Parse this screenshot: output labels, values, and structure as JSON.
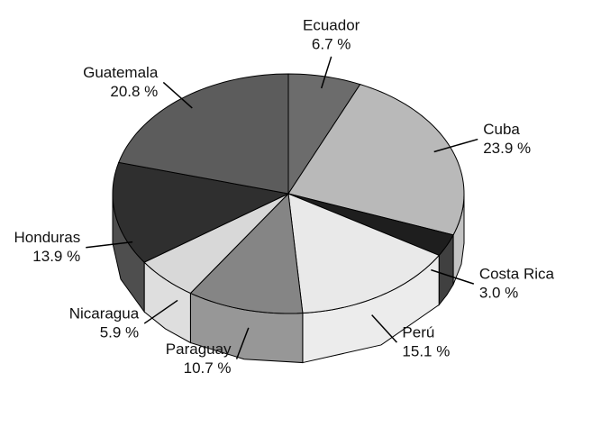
{
  "chart_data": {
    "type": "pie",
    "categories": [
      "Ecuador",
      "Cuba",
      "Costa Rica",
      "Perú",
      "Paraguay",
      "Nicaragua",
      "Honduras",
      "Guatemala"
    ],
    "values": [
      6.7,
      23.9,
      3.0,
      15.1,
      10.7,
      5.9,
      13.9,
      20.8
    ],
    "value_labels": [
      "6.7 %",
      "23.9 %",
      "3.0 %",
      "15.1 %",
      "10.7 %",
      "5.9 %",
      "13.9 %",
      "20.8 %"
    ],
    "colors": [
      "#6c6c6c",
      "#b9b9b9",
      "#1e1e1e",
      "#e9e9e9",
      "#858585",
      "#d8d8d8",
      "#2f2f2f",
      "#5c5c5c"
    ]
  }
}
